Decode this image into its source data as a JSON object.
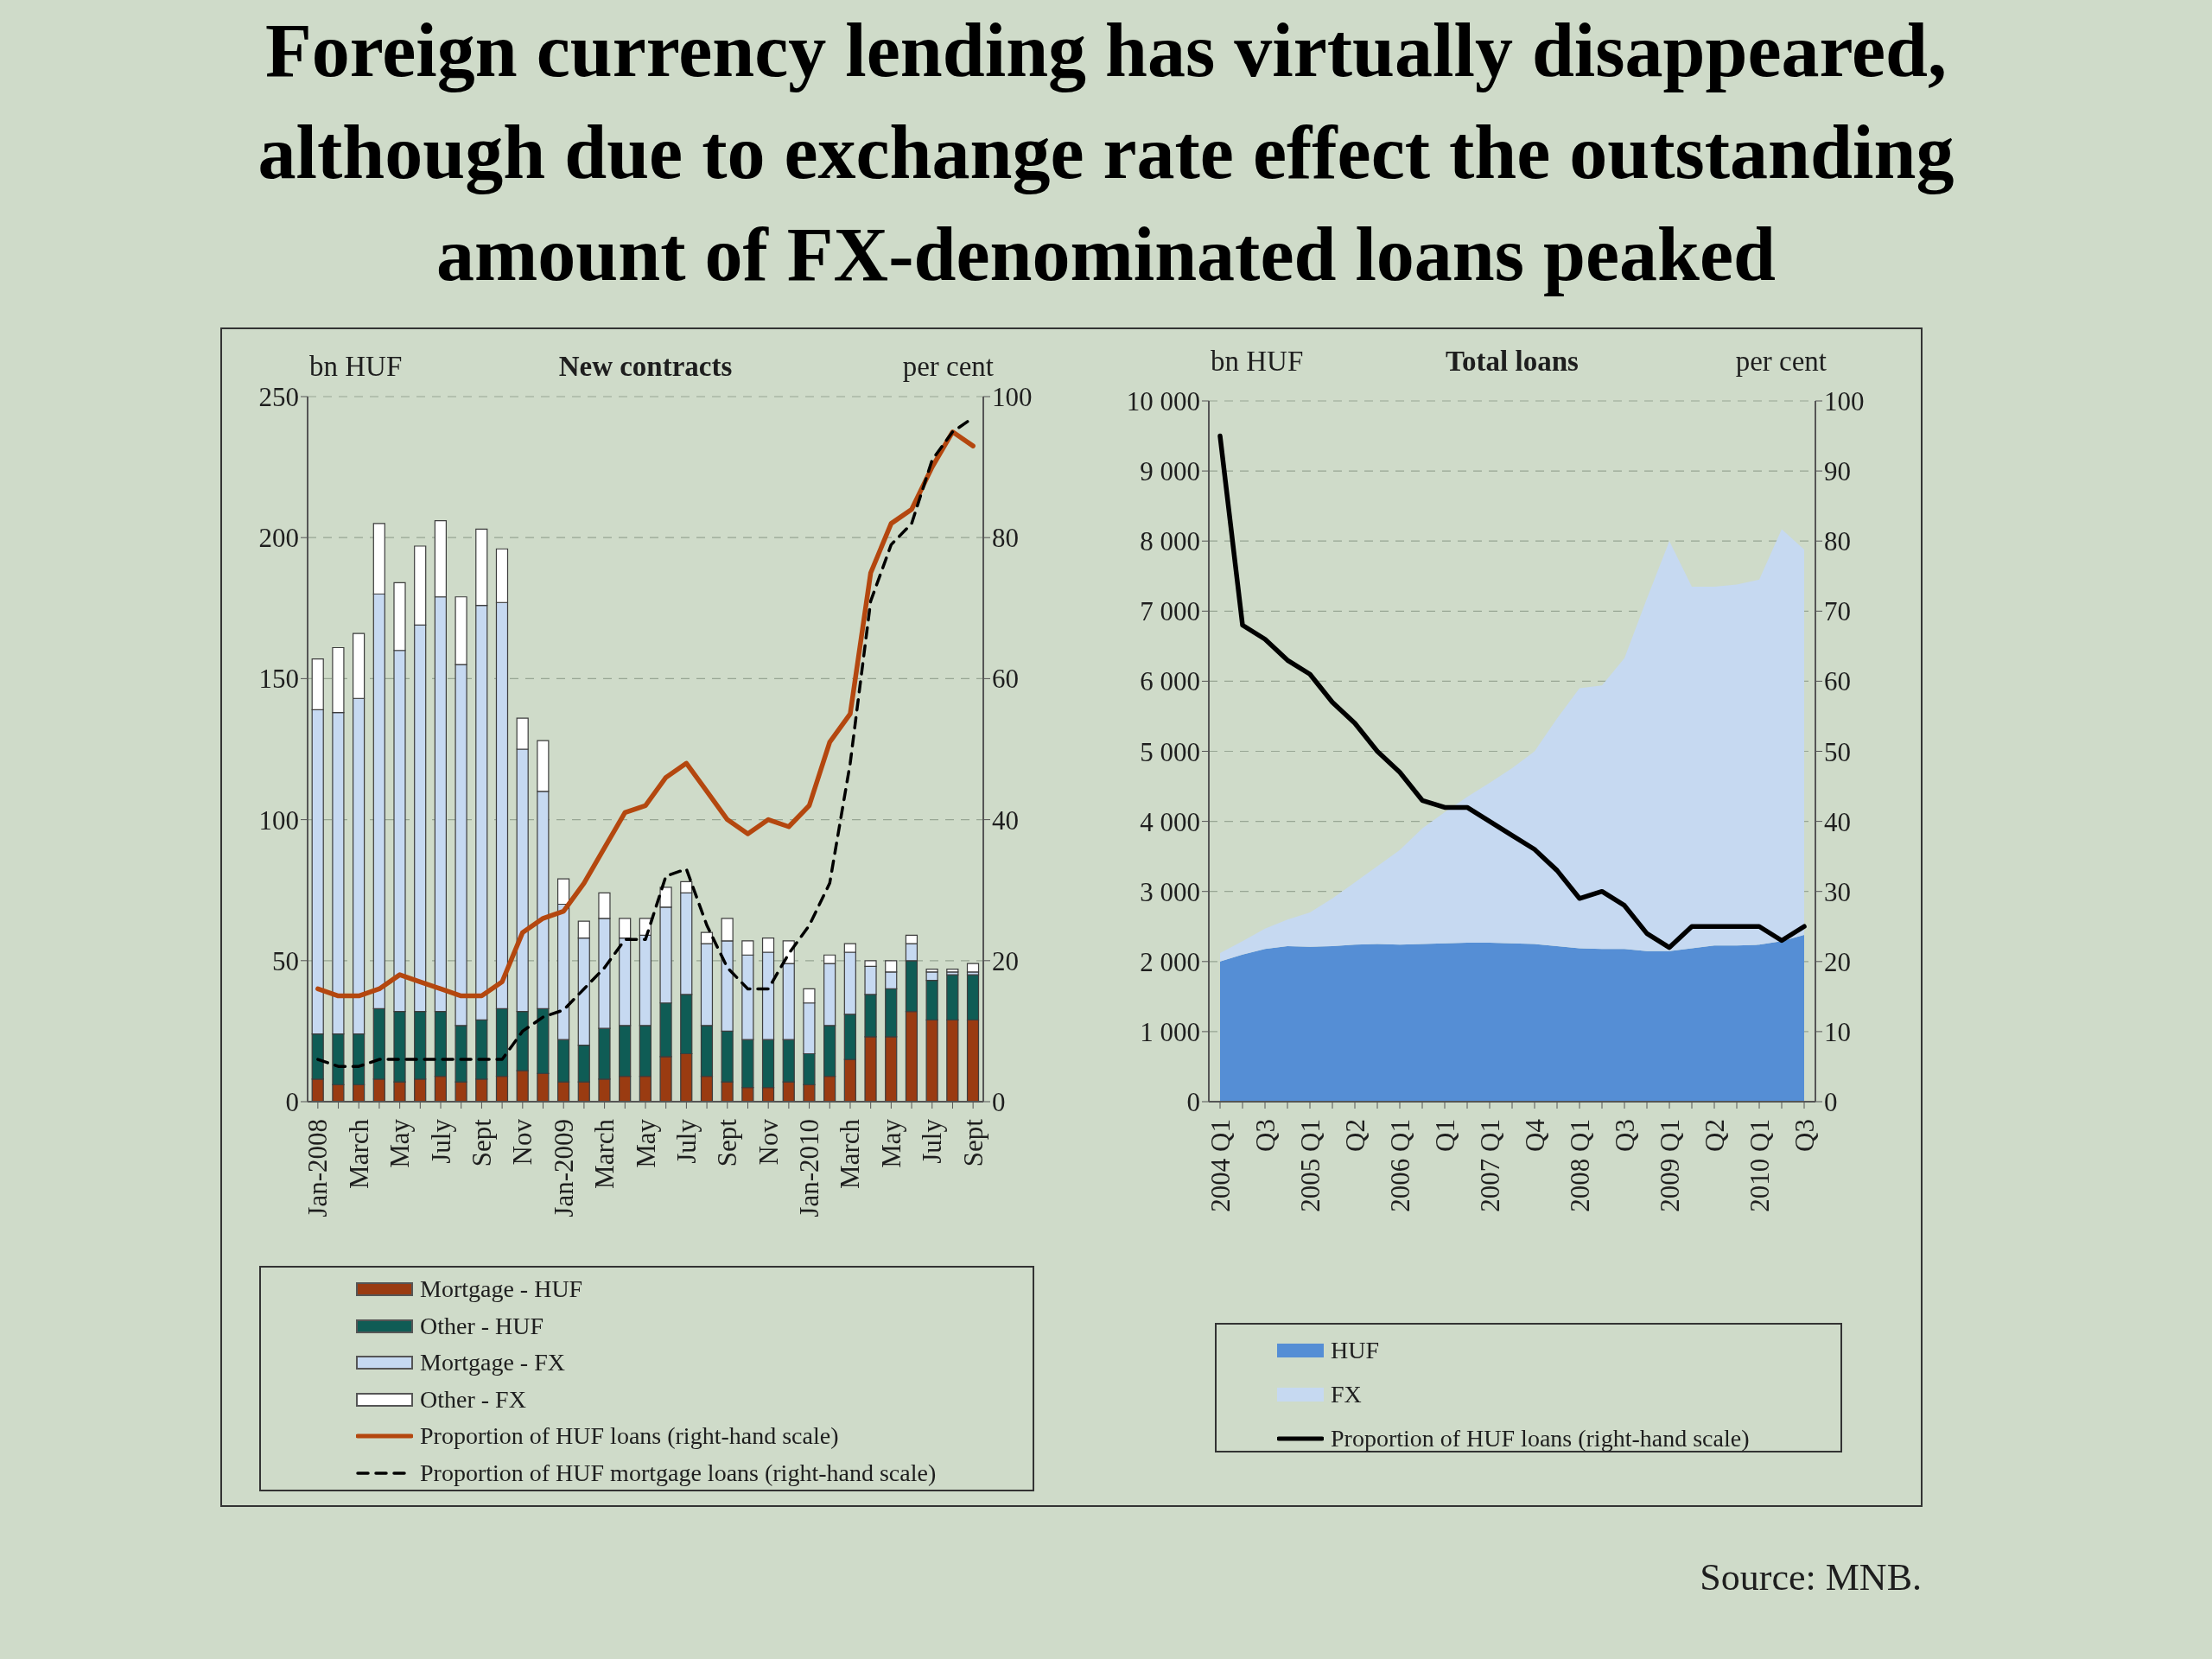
{
  "chart_data": [
    {
      "type": "bar",
      "stacked": true,
      "title": "Foreign currency lending has virtually disappeared, although due to exchange rate effect the outstanding amount of FX-denominated loans peaked",
      "subtitle": "New contracts",
      "ylabel": "bn HUF",
      "y2label": "per cent",
      "categories": [
        "Jan-2008",
        null,
        "March",
        null,
        "May",
        null,
        "July",
        null,
        "Sept",
        null,
        "Nov",
        null,
        "Jan-2009",
        null,
        "March",
        null,
        "May",
        null,
        "July",
        null,
        "Sept",
        null,
        "Nov",
        null,
        "Jan-2010",
        null,
        "March",
        null,
        "May",
        null,
        "July",
        null,
        "Sept"
      ],
      "series": [
        {
          "name": "Mortgage - HUF",
          "color": "#9a3b11",
          "values": [
            8,
            6,
            6,
            8,
            7,
            8,
            9,
            7,
            8,
            9,
            11,
            10,
            7,
            7,
            8,
            9,
            9,
            16,
            17,
            9,
            7,
            5,
            5,
            7,
            6,
            9,
            15,
            23,
            23,
            32,
            29,
            29,
            29
          ]
        },
        {
          "name": "Other - HUF",
          "color": "#0f5c55",
          "values": [
            16,
            18,
            18,
            25,
            25,
            24,
            23,
            20,
            21,
            24,
            21,
            23,
            15,
            13,
            18,
            18,
            18,
            19,
            21,
            18,
            18,
            17,
            17,
            15,
            11,
            18,
            16,
            15,
            17,
            18,
            14,
            16,
            16
          ]
        },
        {
          "name": "Mortgage - FX",
          "color": "#c6d9f1",
          "values": [
            115,
            114,
            119,
            147,
            128,
            137,
            147,
            128,
            147,
            144,
            93,
            77,
            48,
            38,
            39,
            31,
            32,
            34,
            36,
            29,
            32,
            30,
            31,
            27,
            18,
            22,
            22,
            10,
            6,
            6,
            3,
            1,
            1
          ]
        },
        {
          "name": "Other - FX",
          "color": "#ffffff",
          "values": [
            18,
            23,
            23,
            25,
            24,
            28,
            27,
            24,
            27,
            19,
            11,
            18,
            9,
            6,
            9,
            7,
            6,
            7,
            4,
            4,
            8,
            5,
            5,
            8,
            5,
            3,
            3,
            2,
            4,
            3,
            1,
            1,
            3
          ]
        },
        {
          "name": "Proportion of HUF loans (right-hand scale)",
          "type": "line",
          "axis": "y2",
          "color": "#b4470f",
          "values": [
            16,
            15,
            15,
            16,
            18,
            17,
            16,
            15,
            15,
            17,
            24,
            26,
            27,
            31,
            36,
            41,
            42,
            46,
            48,
            44,
            40,
            38,
            40,
            39,
            42,
            51,
            55,
            75,
            82,
            84,
            90,
            95,
            93
          ]
        },
        {
          "name": "Proportion of HUF mortgage loans (right-hand scale)",
          "type": "line",
          "axis": "y2",
          "color": "#000000",
          "line_style": "dashed",
          "values": [
            6,
            5,
            5,
            6,
            6,
            6,
            6,
            6,
            6,
            6,
            10,
            12,
            13,
            16,
            19,
            23,
            23,
            32,
            33,
            25,
            19,
            16,
            16,
            21,
            25,
            31,
            48,
            71,
            79,
            82,
            91,
            95,
            97
          ]
        }
      ],
      "ylim": [
        0,
        250
      ],
      "yticks": [
        0,
        50,
        100,
        150,
        200,
        250
      ],
      "y2lim": [
        0,
        100
      ],
      "y2ticks": [
        0,
        20,
        40,
        60,
        80,
        100
      ],
      "grid": "y",
      "legend": "bottom"
    },
    {
      "type": "area",
      "stacked": true,
      "subtitle": "Total loans",
      "ylabel": "bn HUF",
      "y2label": "per cent",
      "categories": [
        "2004 Q1",
        null,
        "Q3",
        null,
        "2005 Q1",
        null,
        "Q2",
        null,
        "2006 Q1",
        null,
        "Q1",
        null,
        "2007 Q1",
        null,
        "Q4",
        null,
        "2008 Q1",
        null,
        "Q3",
        null,
        "2009 Q1",
        null,
        "Q2",
        null,
        "2010 Q1",
        null,
        "Q3"
      ],
      "series": [
        {
          "name": "HUF",
          "color": "#558ed5",
          "values": [
            2000,
            2100,
            2180,
            2220,
            2210,
            2220,
            2240,
            2250,
            2240,
            2250,
            2260,
            2270,
            2270,
            2260,
            2250,
            2220,
            2190,
            2180,
            2180,
            2150,
            2150,
            2190,
            2230,
            2230,
            2240,
            2290,
            2380
          ]
        },
        {
          "name": "FX",
          "color": "#c6d9f1",
          "values": [
            120,
            190,
            290,
            380,
            490,
            680,
            890,
            1110,
            1350,
            1650,
            1870,
            2080,
            2280,
            2500,
            2750,
            3250,
            3710,
            3760,
            4150,
            5030,
            5850,
            5160,
            5120,
            5150,
            5210,
            5880,
            5500
          ]
        },
        {
          "name": "Proportion of HUF loans (right-hand scale)",
          "type": "line",
          "axis": "y2",
          "color": "#000000",
          "values": [
            95,
            68,
            66,
            63,
            61,
            57,
            54,
            50,
            47,
            43,
            42,
            42,
            40,
            38,
            36,
            33,
            29,
            30,
            28,
            24,
            22,
            25,
            25,
            25,
            25,
            23,
            25
          ]
        }
      ],
      "ylim": [
        0,
        10000
      ],
      "yticks": [
        0,
        {
          "value": 1000,
          "label": "1 000"
        },
        {
          "value": 2000,
          "label": "2 000"
        },
        {
          "value": 3000,
          "label": "3 000"
        },
        {
          "value": 4000,
          "label": "4 000"
        },
        {
          "value": 5000,
          "label": "5 000"
        },
        {
          "value": 6000,
          "label": "6 000"
        },
        {
          "value": 7000,
          "label": "7 000"
        },
        {
          "value": 8000,
          "label": "8 000"
        },
        {
          "value": 9000,
          "label": "9 000"
        },
        {
          "value": 10000,
          "label": "10 000"
        }
      ],
      "y2lim": [
        0,
        100
      ],
      "y2ticks": [
        0,
        10,
        20,
        30,
        40,
        50,
        60,
        70,
        80,
        90,
        100
      ],
      "grid": "y",
      "legend": "bottom",
      "annotations": [
        "Source: MNB."
      ]
    }
  ]
}
